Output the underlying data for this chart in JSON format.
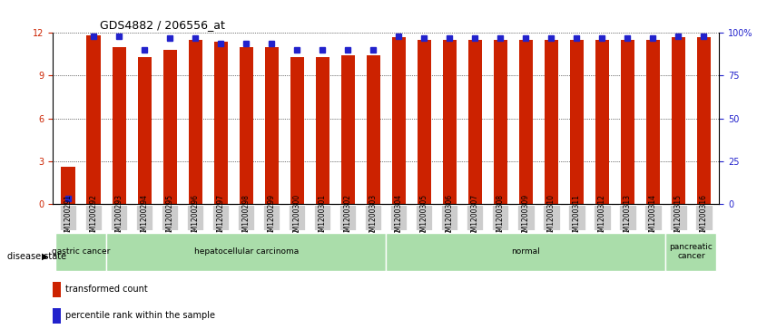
{
  "title": "GDS4882 / 206556_at",
  "samples": [
    "GSM1200291",
    "GSM1200292",
    "GSM1200293",
    "GSM1200294",
    "GSM1200295",
    "GSM1200296",
    "GSM1200297",
    "GSM1200298",
    "GSM1200299",
    "GSM1200300",
    "GSM1200301",
    "GSM1200302",
    "GSM1200303",
    "GSM1200304",
    "GSM1200305",
    "GSM1200306",
    "GSM1200307",
    "GSM1200308",
    "GSM1200309",
    "GSM1200310",
    "GSM1200311",
    "GSM1200312",
    "GSM1200313",
    "GSM1200314",
    "GSM1200315",
    "GSM1200316"
  ],
  "transformed_count": [
    2.6,
    11.8,
    11.0,
    10.3,
    10.8,
    11.5,
    11.4,
    11.0,
    11.0,
    10.3,
    10.3,
    10.4,
    10.4,
    11.7,
    11.5,
    11.5,
    11.5,
    11.5,
    11.5,
    11.5,
    11.5,
    11.5,
    11.5,
    11.5,
    11.7,
    11.7
  ],
  "percentile_rank": [
    3.3,
    98,
    98,
    90,
    97,
    97,
    94,
    94,
    94,
    90,
    90,
    90,
    90,
    98,
    97,
    97,
    97,
    97,
    97,
    97,
    97,
    97,
    97,
    97,
    98,
    98
  ],
  "disease_groups": [
    {
      "label": "gastric cancer",
      "start": 0,
      "end": 2
    },
    {
      "label": "hepatocellular carcinoma",
      "start": 2,
      "end": 13
    },
    {
      "label": "normal",
      "start": 13,
      "end": 24
    },
    {
      "label": "pancreatic\ncancer",
      "start": 24,
      "end": 26
    }
  ],
  "ylim_left": [
    0,
    12
  ],
  "ylim_right": [
    0,
    100
  ],
  "yticks_left": [
    0,
    3,
    6,
    9,
    12
  ],
  "yticks_right": [
    0,
    25,
    50,
    75,
    100
  ],
  "bar_color": "#cc2200",
  "dot_color": "#2222cc",
  "bg_color": "#ffffff",
  "grid_color": "#000000",
  "group_bg_color": "#aaddaa",
  "tick_label_bg": "#cccccc",
  "disease_label": "disease state"
}
